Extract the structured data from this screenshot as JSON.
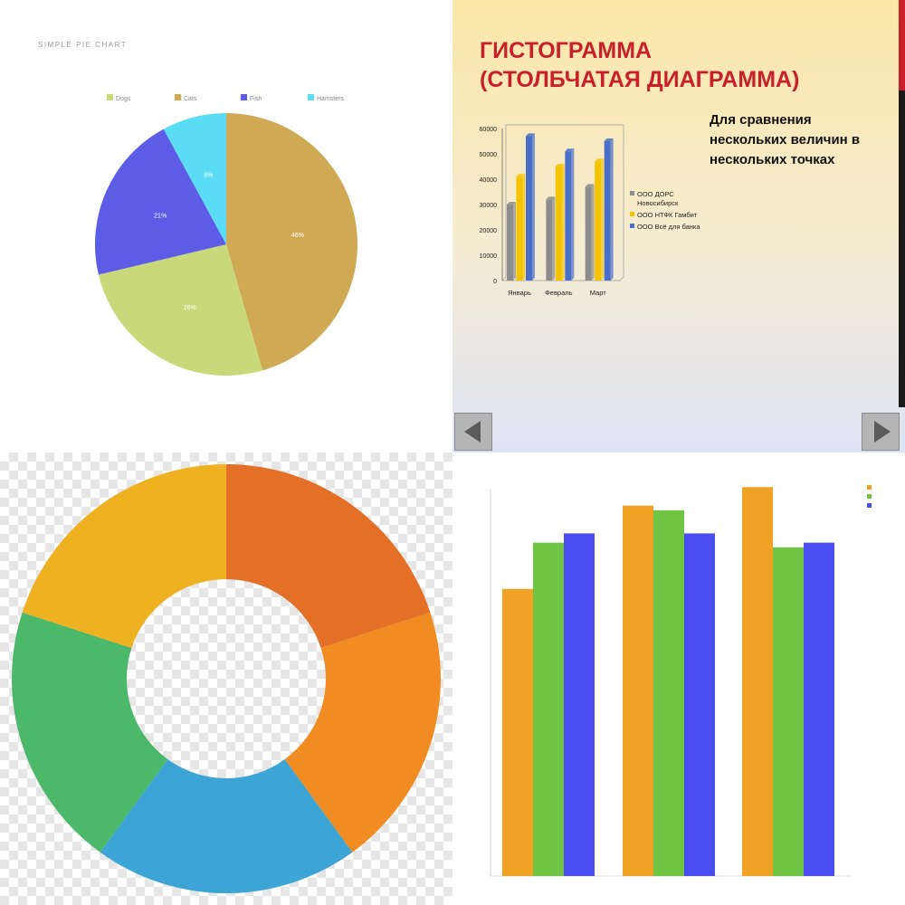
{
  "chart_data": [
    {
      "type": "pie",
      "title": "SIMPLE PIE CHART",
      "legend": "top",
      "categories": [
        "Dogs",
        "Cats",
        "Fish",
        "Hamsters"
      ],
      "values": [
        26,
        46,
        21,
        8
      ],
      "labels": [
        "26%",
        "46%",
        "21%",
        "8%"
      ],
      "colors": [
        "#c9d97a",
        "#d0a955",
        "#5c5ce6",
        "#5bdcf5"
      ]
    },
    {
      "type": "bar",
      "title": "ГИСТОГРАММА (СТОЛБЧАТАЯ ДИАГРАММА)",
      "title_lines": [
        "ГИСТОГРАММА",
        "(СТОЛБЧАТАЯ ДИАГРАММА)"
      ],
      "note_lines": [
        "Для сравнения",
        "нескольких величин в",
        "нескольких точках"
      ],
      "categories": [
        "Январь",
        "Февраль",
        "Март"
      ],
      "series": [
        {
          "name": "ООО ДОРС Новосибирск",
          "name_lines": [
            "ООО ДОРС",
            "Новосибирск"
          ],
          "values": [
            30000,
            32000,
            37000
          ],
          "color": "#8c8c8c"
        },
        {
          "name": "ООО НТФК Гамбит",
          "name_lines": [
            "ООО НТФК Гамбит"
          ],
          "values": [
            41000,
            45000,
            47000
          ],
          "color": "#f5c400"
        },
        {
          "name": "ООО Всё для банка",
          "name_lines": [
            "ООО Всё для банка"
          ],
          "values": [
            57000,
            51000,
            55000
          ],
          "color": "#4a6fc8"
        }
      ],
      "ylim": [
        0,
        60000
      ],
      "yticks": [
        "60000",
        "50000",
        "40000",
        "30000",
        "20000",
        "10000",
        "0"
      ],
      "legend": "right"
    },
    {
      "type": "pie",
      "donut": true,
      "values": [
        20,
        20,
        20,
        20,
        20
      ],
      "colors": [
        "#e37026",
        "#f08c22",
        "#3da5d6",
        "#4cb86a",
        "#edb121"
      ]
    },
    {
      "type": "bar",
      "categories": [
        "",
        "",
        ""
      ],
      "series": [
        {
          "values": [
            0.62,
            0.8,
            0.84
          ],
          "color": "#f0a224"
        },
        {
          "values": [
            0.72,
            0.79,
            0.71
          ],
          "color": "#6fc444"
        },
        {
          "values": [
            0.74,
            0.74,
            0.72
          ],
          "color": "#4a4ef0"
        }
      ],
      "ylim": [
        0,
        0.86
      ],
      "grid": false,
      "legend": "top-right"
    }
  ]
}
